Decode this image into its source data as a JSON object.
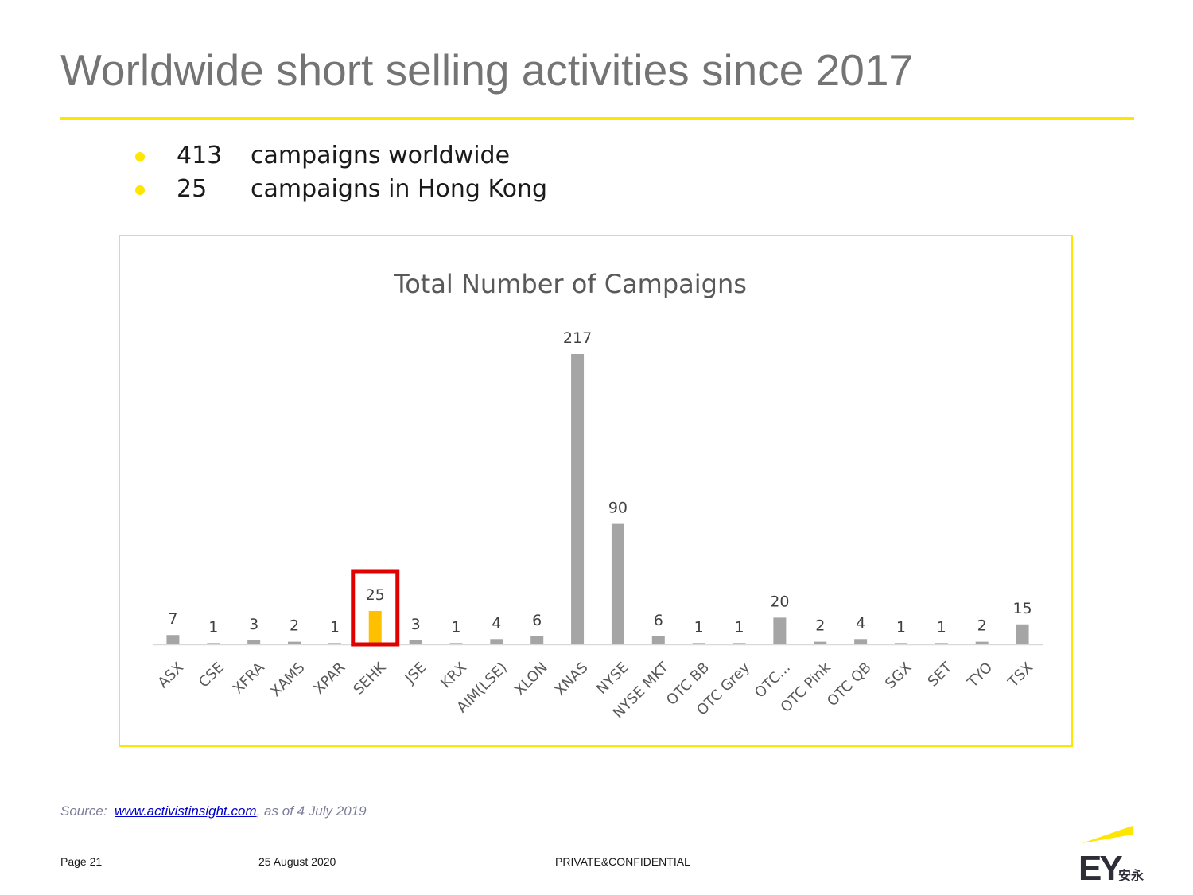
{
  "header": {
    "title": "Worldwide short selling activities since 2017"
  },
  "bullets": [
    {
      "number": "413",
      "text": "campaigns worldwide"
    },
    {
      "number": "25",
      "text": "campaigns in Hong Kong"
    }
  ],
  "colors": {
    "bar": "#a5a5a5",
    "highlight_bar": "#ffc000",
    "highlight_box": "#e00000",
    "frame": "#ffe600",
    "accent": "#ffe600"
  },
  "chart_data": {
    "type": "bar",
    "title": "Total Number of Campaigns",
    "xlabel": "",
    "ylabel": "",
    "ylim": [
      0,
      217
    ],
    "grid": false,
    "legend": "none",
    "categories": [
      "ASX",
      "CSE",
      "XFRA",
      "XAMS",
      "XPAR",
      "SEHK",
      "JSE",
      "KRX",
      "AIM(LSE)",
      "XLON",
      "XNAS",
      "NYSE",
      "NYSE MKT",
      "OTC BB",
      "OTC Grey",
      "OTC...",
      "OTC Pink",
      "OTC QB",
      "SGX",
      "SET",
      "TYO",
      "TSX"
    ],
    "values": [
      7,
      1,
      3,
      2,
      1,
      25,
      3,
      1,
      4,
      6,
      217,
      90,
      6,
      1,
      1,
      20,
      2,
      4,
      1,
      1,
      2,
      15
    ],
    "highlight": "SEHK"
  },
  "source": {
    "prefix": "Source:",
    "link_text": "www.activistinsight.com",
    "suffix": ", as of 4 July 2019"
  },
  "footer": {
    "page": "Page 21",
    "date": "25 August 2020",
    "classification": "PRIVATE&CONFIDENTIAL"
  },
  "logo": {
    "text": "EY",
    "cn_text": "安永"
  }
}
